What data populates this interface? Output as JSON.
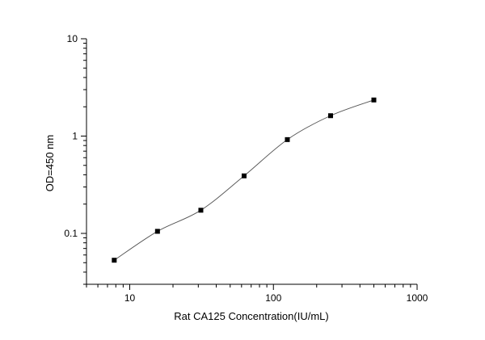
{
  "chart_data": {
    "type": "scatter",
    "title": "",
    "xlabel": "Rat CA125 Concentration(IU/mL)",
    "ylabel": "OD=450 nm",
    "x_scale": "log",
    "y_scale": "log",
    "xlim": [
      5,
      1000
    ],
    "ylim": [
      0.03,
      10
    ],
    "x_ticks": [
      {
        "value": 10,
        "label": "10"
      },
      {
        "value": 100,
        "label": "100"
      },
      {
        "value": 1000,
        "label": "1000"
      }
    ],
    "y_ticks": [
      {
        "value": 0.1,
        "label": "0.1"
      },
      {
        "value": 1,
        "label": "1"
      },
      {
        "value": 10,
        "label": "10"
      }
    ],
    "grid": false,
    "legend": "none",
    "series": [
      {
        "x": [
          7.8,
          15.6,
          31.25,
          62.5,
          125,
          250,
          500
        ],
        "y": [
          0.053,
          0.105,
          0.173,
          0.39,
          0.92,
          1.62,
          2.35
        ],
        "marker": "square",
        "connect": "smooth-line",
        "marker_color": "#000000",
        "line_color": "#555555"
      }
    ]
  }
}
